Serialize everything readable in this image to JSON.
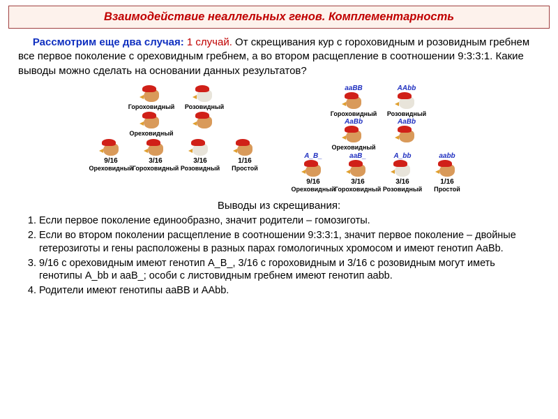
{
  "title": "Взаимодействие неаллельных генов. Комплементарность",
  "intro": {
    "lead": "Рассмотрим еще два случая:",
    "case": "1 случай.",
    "rest": " От скрещивания кур с гороховидным и розовидным гребнем все первое поколение с ореховидным гребнем, а во втором расщепление в соотношении 9:3:3:1. Какие выводы можно сделать на основании данных результатов?"
  },
  "left": {
    "p1": {
      "label": "Гороховидный"
    },
    "p2": {
      "label": "Розовидный"
    },
    "f1": {
      "label": "Ореховидный"
    },
    "f2": [
      {
        "frac": "9/16",
        "label": "Ореховидный"
      },
      {
        "frac": "3/16",
        "label": "Гороховидный"
      },
      {
        "frac": "3/16",
        "label": "Розовидный"
      },
      {
        "frac": "1/16",
        "label": "Простой"
      }
    ]
  },
  "right": {
    "p1": {
      "geno": "aaBB",
      "label": "Гороховидный"
    },
    "p2": {
      "geno": "AAbb",
      "label": "Розовидный"
    },
    "f1": {
      "geno": "AaBb",
      "label": "Ореховидный"
    },
    "f1b": {
      "geno": "AaBb"
    },
    "f2": [
      {
        "geno": "A_B_",
        "frac": "9/16",
        "label": "Ореховидный"
      },
      {
        "geno": "aaB_",
        "frac": "3/16",
        "label": "Гороховидный"
      },
      {
        "geno": "A_bb",
        "frac": "3/16",
        "label": "Розовидный"
      },
      {
        "geno": "aabb",
        "frac": "1/16",
        "label": "Простой"
      }
    ]
  },
  "conclusion_title": "Выводы из скрещивания:",
  "conclusions": [
    "Если первое поколение единообразно, значит родители – гомозиготы.",
    "Если во втором поколении расщепление в соотношении 9:3:3:1, значит первое поколение – двойные гетерозиготы и гены расположены в разных парах гомологичных хромосом и имеют генотип AaBb.",
    "9/16 с ореховидным имеют генотип A_B_, 3/16 с гороховидным и 3/16 с розовидным могут иметь генотипы A_bb и aaB_; особи с листовидным гребнем имеют генотип aabb.",
    "Родители имеют генотипы aaBB и AAbb."
  ]
}
